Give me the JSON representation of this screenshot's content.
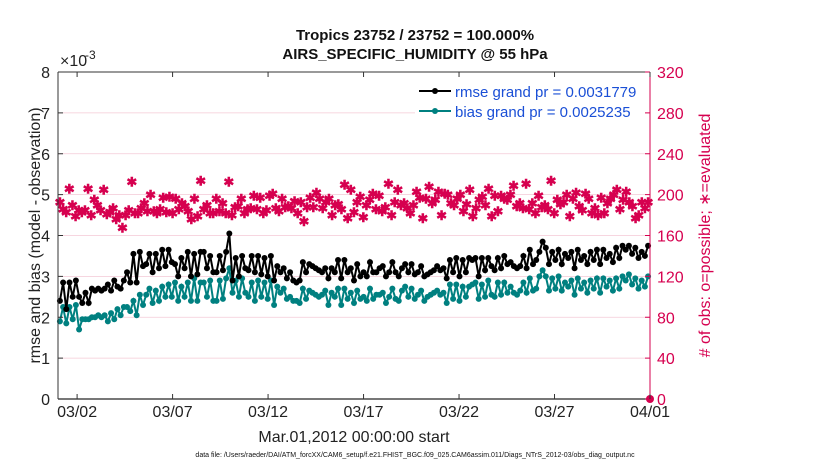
{
  "title_line1": "Tropics 23752 / 23752 = 100.000%",
  "title_line2": "AIRS_SPECIFIC_HUMIDITY @ 55 hPa",
  "footnote": "data file: /Users/raeder/DAI/ATM_forcXX/CAM6_setup/f.e21.FHIST_BGC.f09_025.CAM6assim.011/Diags_NTrS_2012-03/obs_diag_output.nc",
  "colors": {
    "rmse": "#000000",
    "bias": "#008080",
    "count": "#d6004f",
    "legend_text": "#1a4fd6"
  },
  "chart_data": {
    "type": "line",
    "title": "Tropics 23752 / 23752 = 100.000%",
    "subtitle": "AIRS_SPECIFIC_HUMIDITY @ 55 hPa",
    "xlabel": "Mar.01,2012 00:00:00 start",
    "ylabel_left": "rmse and bias (model - observation)",
    "ylabel_right": "# of obs: o=possible; ∗=evaluated",
    "y_exponent_label": "×10",
    "y_exponent_power": "-3",
    "xlim": [
      0.0,
      31.0
    ],
    "ylim_left": [
      0,
      8
    ],
    "ylim_right": [
      0,
      320
    ],
    "x_ticks": [
      {
        "x": 1,
        "label": "03/02"
      },
      {
        "x": 6,
        "label": "03/07"
      },
      {
        "x": 11,
        "label": "03/12"
      },
      {
        "x": 16,
        "label": "03/17"
      },
      {
        "x": 21,
        "label": "03/22"
      },
      {
        "x": 26,
        "label": "03/27"
      },
      {
        "x": 31,
        "label": "04/01"
      }
    ],
    "y_left_ticks": [
      0,
      1,
      2,
      3,
      4,
      5,
      6,
      7,
      8
    ],
    "y_right_ticks": [
      0,
      40,
      80,
      120,
      160,
      200,
      240,
      280,
      320
    ],
    "legend": [
      {
        "name": "rmse grand pr = 0.0031779"
      },
      {
        "name": "bias grand pr = 0.0025235"
      }
    ],
    "series": [
      {
        "name": "rmse",
        "unit_scale": "x1e-3",
        "values": [
          2.4,
          2.85,
          2.2,
          2.85,
          2.5,
          2.9,
          2.5,
          2.35,
          2.6,
          2.35,
          2.7,
          2.65,
          2.7,
          2.65,
          2.7,
          2.8,
          2.65,
          2.9,
          2.75,
          2.7,
          2.9,
          3.1,
          2.85,
          3.55,
          2.85,
          3.6,
          3.25,
          3.3,
          3.55,
          3.1,
          3.55,
          3.2,
          3.65,
          3.25,
          3.65,
          3.35,
          3.3,
          3.0,
          3.45,
          3.2,
          3.6,
          3.0,
          3.55,
          3.05,
          3.6,
          3.6,
          3.2,
          3.5,
          3.1,
          3.1,
          3.5,
          3.15,
          3.6,
          4.05,
          2.9,
          3.45,
          3.0,
          3.5,
          3.2,
          3.15,
          3.5,
          3.1,
          3.5,
          3.05,
          3.45,
          3.0,
          3.5,
          2.9,
          3.25,
          3.1,
          3.2,
          2.95,
          3.1,
          2.9,
          2.85,
          2.9,
          3.35,
          3.1,
          3.3,
          3.25,
          3.2,
          3.15,
          3.1,
          3.2,
          2.95,
          3.2,
          3.1,
          3.4,
          2.95,
          3.4,
          3.1,
          3.2,
          2.9,
          3.3,
          3.0,
          3.1,
          3.0,
          3.35,
          3.1,
          3.1,
          3.2,
          3.25,
          3.0,
          3.1,
          3.35,
          3.1,
          3.0,
          3.2,
          3.3,
          3.1,
          3.3,
          3.05,
          3.1,
          3.25,
          3.0,
          3.05,
          3.1,
          3.15,
          3.25,
          3.15,
          3.2,
          2.95,
          3.4,
          3.1,
          3.45,
          3.0,
          3.4,
          3.1,
          3.45,
          3.4,
          3.45,
          3.0,
          3.45,
          3.15,
          3.45,
          3.25,
          3.15,
          3.45,
          3.2,
          3.5,
          3.3,
          3.35,
          3.25,
          3.2,
          3.25,
          3.5,
          3.2,
          3.65,
          3.3,
          3.4,
          3.6,
          3.85,
          3.7,
          3.3,
          3.6,
          3.4,
          3.65,
          3.3,
          3.55,
          3.45,
          3.6,
          3.2,
          3.65,
          3.4,
          3.5,
          3.3,
          3.6,
          3.4,
          3.65,
          3.3,
          3.65,
          3.45,
          3.55,
          3.35,
          3.7,
          3.45,
          3.75,
          3.65,
          3.75,
          3.55,
          3.7,
          3.45,
          3.6,
          3.5,
          3.75
        ]
      },
      {
        "name": "bias",
        "unit_scale": "x1e-3",
        "values": [
          1.9,
          2.25,
          1.85,
          2.25,
          1.95,
          2.3,
          1.7,
          1.95,
          1.95,
          1.95,
          2.0,
          2.0,
          2.05,
          2.0,
          2.05,
          1.9,
          2.1,
          1.95,
          2.2,
          2.05,
          2.25,
          2.25,
          2.15,
          2.4,
          2.05,
          2.55,
          2.3,
          2.55,
          2.7,
          2.35,
          2.65,
          2.4,
          2.75,
          2.5,
          2.8,
          2.5,
          2.85,
          2.4,
          2.75,
          2.5,
          2.85,
          2.4,
          2.95,
          2.4,
          2.85,
          2.85,
          2.5,
          2.9,
          2.4,
          2.4,
          2.9,
          2.45,
          2.95,
          3.2,
          2.6,
          2.9,
          2.5,
          2.95,
          2.6,
          2.5,
          2.85,
          2.4,
          2.9,
          2.5,
          2.85,
          2.45,
          2.9,
          2.3,
          2.75,
          2.6,
          2.7,
          2.45,
          2.5,
          2.4,
          2.4,
          2.35,
          2.7,
          2.45,
          2.65,
          2.6,
          2.55,
          2.5,
          2.55,
          2.65,
          2.3,
          2.6,
          2.5,
          2.7,
          2.3,
          2.7,
          2.45,
          2.6,
          2.35,
          2.65,
          2.45,
          2.5,
          2.4,
          2.7,
          2.45,
          2.55,
          2.55,
          2.6,
          2.35,
          2.5,
          2.7,
          2.45,
          2.4,
          2.65,
          2.75,
          2.5,
          2.7,
          2.45,
          2.55,
          2.65,
          2.4,
          2.5,
          2.55,
          2.6,
          2.65,
          2.55,
          2.6,
          2.35,
          2.8,
          2.45,
          2.8,
          2.4,
          2.75,
          2.5,
          2.75,
          2.8,
          2.85,
          2.45,
          2.8,
          2.5,
          2.9,
          2.55,
          2.5,
          2.85,
          2.55,
          2.85,
          2.6,
          2.75,
          2.6,
          2.55,
          2.65,
          2.85,
          2.6,
          2.95,
          2.65,
          2.7,
          3.0,
          3.15,
          3.0,
          2.65,
          2.95,
          2.7,
          3.0,
          2.65,
          2.85,
          2.75,
          2.9,
          2.55,
          2.95,
          2.7,
          2.85,
          2.6,
          2.9,
          2.7,
          2.95,
          2.6,
          2.95,
          2.75,
          2.9,
          2.65,
          2.95,
          2.7,
          3.0,
          2.9,
          3.05,
          2.8,
          2.95,
          2.7,
          2.9,
          2.75,
          3.0
        ]
      },
      {
        "name": "evaluated",
        "axis": "right",
        "values": [
          193,
          186,
          183,
          206,
          190,
          179,
          185,
          183,
          185,
          206,
          180,
          195,
          190,
          185,
          205,
          181,
          183,
          187,
          176,
          180,
          168,
          180,
          185,
          213,
          182,
          182,
          187,
          192,
          184,
          200,
          184,
          182,
          186,
          197,
          183,
          198,
          182,
          196,
          186,
          192,
          189,
          184,
          176,
          196,
          179,
          214,
          186,
          190,
          182,
          182,
          196,
          184,
          192,
          182,
          213,
          180,
          188,
          189,
          196,
          182,
          186,
          187,
          199,
          186,
          197,
          182,
          185,
          199,
          201,
          187,
          184,
          196,
          188,
          189,
          187,
          194,
          182,
          193,
          174,
          188,
          197,
          188,
          202,
          196,
          187,
          193,
          196,
          180,
          190,
          191,
          186,
          210,
          177,
          205,
          183,
          193,
          198,
          178,
          190,
          195,
          201,
          186,
          199,
          184,
          188,
          211,
          180,
          193,
          205,
          190,
          192,
          187,
          182,
          190,
          203,
          197,
          177,
          196,
          208,
          192,
          195,
          203,
          180,
          201,
          200,
          192,
          190,
          196,
          200,
          184,
          191,
          205,
          179,
          187,
          195,
          198,
          190,
          206,
          179,
          199,
          184,
          199,
          196,
          195,
          200,
          209,
          189,
          192,
          187,
          211,
          186,
          192,
          182,
          199,
          188,
          190,
          186,
          214,
          182,
          195,
          191,
          193,
          200,
          179,
          196,
          202,
          189,
          185,
          201,
          196,
          182,
          187,
          180,
          197,
          182,
          192,
          196,
          200,
          205,
          186,
          195,
          203,
          193,
          189,
          177,
          180,
          193,
          187,
          193
        ]
      },
      {
        "name": "possible",
        "axis": "right",
        "values": [
          0
        ]
      }
    ]
  }
}
